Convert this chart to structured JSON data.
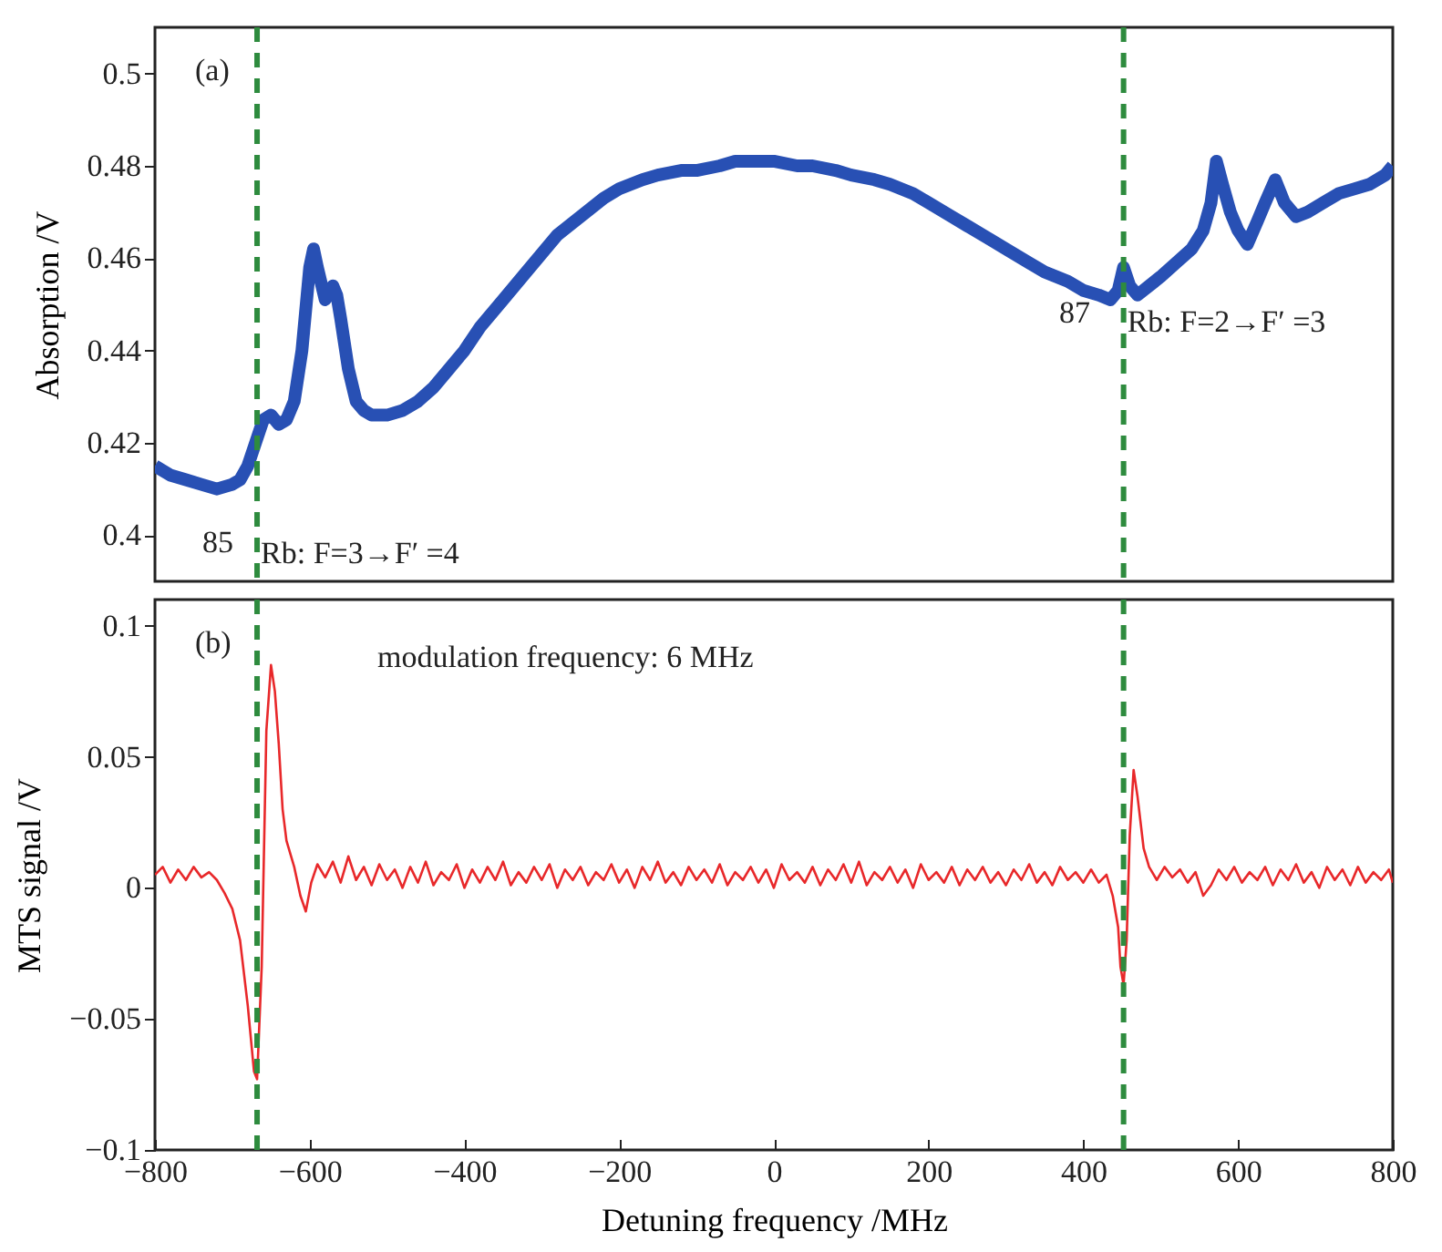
{
  "chart_data": [
    {
      "type": "line",
      "ylabel": "Absorption /V",
      "xlim": [
        -800,
        800
      ],
      "xticks": [
        -800,
        -600,
        -400,
        -200,
        0,
        200,
        400,
        600,
        800
      ],
      "ylim": [
        0.39,
        0.51
      ],
      "yticks": [
        0.4,
        0.42,
        0.44,
        0.46,
        0.48,
        0.5
      ],
      "tick_labels": "y",
      "grid": false,
      "annotations": [
        "(a)",
        "85",
        {
          "text": "Rb: F=3→F′ =4",
          "x": -668,
          "y": 0.396
        },
        "87",
        {
          "text": "Rb: F=2→F′ =3",
          "x": 452,
          "y": 0.446
        }
      ],
      "ref_lines": [
        {
          "axis": "x",
          "value": -668,
          "color": "#2e8b3e",
          "line_style": "dashed"
        },
        {
          "axis": "x",
          "value": 452,
          "color": "#2e8b3e",
          "line_style": "dashed"
        }
      ],
      "series": [
        {
          "color": "#2850b4",
          "x": [
            -800,
            -780,
            -760,
            -740,
            -720,
            -700,
            -690,
            -680,
            -670,
            -660,
            -650,
            -640,
            -630,
            -620,
            -610,
            -600,
            -595,
            -590,
            -580,
            -570,
            -565,
            -560,
            -550,
            -540,
            -530,
            -520,
            -500,
            -480,
            -460,
            -440,
            -420,
            -400,
            -380,
            -350,
            -320,
            -300,
            -280,
            -250,
            -220,
            -200,
            -170,
            -150,
            -120,
            -100,
            -70,
            -50,
            -20,
            0,
            30,
            50,
            80,
            100,
            130,
            150,
            180,
            200,
            230,
            250,
            280,
            300,
            330,
            350,
            380,
            400,
            420,
            435,
            445,
            452,
            460,
            470,
            485,
            500,
            520,
            540,
            555,
            565,
            572,
            580,
            590,
            600,
            612,
            625,
            635,
            648,
            660,
            675,
            690,
            710,
            730,
            750,
            770,
            790,
            800
          ],
          "values": [
            0.415,
            0.413,
            0.412,
            0.411,
            0.41,
            0.411,
            0.412,
            0.415,
            0.42,
            0.425,
            0.426,
            0.424,
            0.425,
            0.429,
            0.44,
            0.458,
            0.462,
            0.458,
            0.451,
            0.454,
            0.452,
            0.447,
            0.436,
            0.429,
            0.427,
            0.426,
            0.426,
            0.427,
            0.429,
            0.432,
            0.436,
            0.44,
            0.445,
            0.451,
            0.457,
            0.461,
            0.465,
            0.469,
            0.473,
            0.475,
            0.477,
            0.478,
            0.479,
            0.479,
            0.48,
            0.481,
            0.481,
            0.481,
            0.48,
            0.48,
            0.479,
            0.478,
            0.477,
            0.476,
            0.474,
            0.472,
            0.469,
            0.467,
            0.464,
            0.462,
            0.459,
            0.457,
            0.455,
            0.453,
            0.452,
            0.451,
            0.453,
            0.458,
            0.454,
            0.452,
            0.454,
            0.456,
            0.459,
            0.462,
            0.466,
            0.472,
            0.481,
            0.476,
            0.47,
            0.466,
            0.463,
            0.468,
            0.472,
            0.477,
            0.472,
            0.469,
            0.47,
            0.472,
            0.474,
            0.475,
            0.476,
            0.478,
            0.48
          ]
        }
      ]
    },
    {
      "type": "line",
      "xlabel": "Detuning frequency /MHz",
      "ylabel": "MTS signal /V",
      "xlim": [
        -800,
        800
      ],
      "xticks": [
        -800,
        -600,
        -400,
        -200,
        0,
        200,
        400,
        600,
        800
      ],
      "ylim": [
        -0.1,
        0.11
      ],
      "yticks": [
        -0.1,
        -0.05,
        0,
        0.05,
        0.1
      ],
      "grid": false,
      "annotations": [
        "(b)",
        "modulation frequency: 6 MHz"
      ],
      "ref_lines": [
        {
          "axis": "x",
          "value": -668,
          "color": "#2e8b3e",
          "line_style": "dashed"
        },
        {
          "axis": "x",
          "value": 452,
          "color": "#2e8b3e",
          "line_style": "dashed"
        }
      ],
      "series": [
        {
          "color": "#e8282a",
          "x": [
            -800,
            -790,
            -780,
            -770,
            -760,
            -750,
            -740,
            -730,
            -720,
            -710,
            -700,
            -690,
            -680,
            -672,
            -668,
            -662,
            -656,
            -650,
            -645,
            -640,
            -635,
            -630,
            -620,
            -612,
            -605,
            -598,
            -590,
            -580,
            -570,
            -560,
            -550,
            -540,
            -530,
            -520,
            -510,
            -500,
            -490,
            -480,
            -470,
            -460,
            -450,
            -440,
            -430,
            -420,
            -410,
            -400,
            -390,
            -380,
            -370,
            -360,
            -350,
            -340,
            -330,
            -320,
            -310,
            -300,
            -290,
            -280,
            -270,
            -260,
            -250,
            -240,
            -230,
            -220,
            -210,
            -200,
            -190,
            -180,
            -170,
            -160,
            -150,
            -140,
            -130,
            -120,
            -110,
            -100,
            -90,
            -80,
            -70,
            -60,
            -50,
            -40,
            -30,
            -20,
            -10,
            0,
            10,
            20,
            30,
            40,
            50,
            60,
            70,
            80,
            90,
            100,
            110,
            120,
            130,
            140,
            150,
            160,
            170,
            180,
            190,
            200,
            210,
            220,
            230,
            240,
            250,
            260,
            270,
            280,
            290,
            300,
            310,
            320,
            330,
            340,
            350,
            360,
            370,
            380,
            390,
            400,
            410,
            420,
            430,
            438,
            445,
            448,
            452,
            456,
            460,
            465,
            470,
            478,
            485,
            495,
            505,
            515,
            525,
            535,
            545,
            555,
            565,
            575,
            585,
            595,
            605,
            615,
            625,
            635,
            645,
            655,
            665,
            675,
            685,
            695,
            705,
            715,
            725,
            735,
            745,
            755,
            765,
            775,
            785,
            795,
            800
          ],
          "values": [
            0.005,
            0.008,
            0.002,
            0.007,
            0.003,
            0.008,
            0.004,
            0.006,
            0.003,
            -0.002,
            -0.008,
            -0.02,
            -0.045,
            -0.07,
            -0.073,
            -0.03,
            0.06,
            0.085,
            0.075,
            0.055,
            0.03,
            0.018,
            0.008,
            -0.003,
            -0.009,
            0.002,
            0.009,
            0.004,
            0.01,
            0.002,
            0.012,
            0.003,
            0.008,
            0.001,
            0.009,
            0.003,
            0.007,
            0.0,
            0.008,
            0.002,
            0.01,
            0.001,
            0.006,
            0.003,
            0.009,
            0.0,
            0.007,
            0.002,
            0.008,
            0.003,
            0.01,
            0.001,
            0.006,
            0.002,
            0.008,
            0.003,
            0.009,
            0.0,
            0.007,
            0.003,
            0.008,
            0.001,
            0.006,
            0.003,
            0.009,
            0.002,
            0.007,
            0.0,
            0.008,
            0.003,
            0.01,
            0.002,
            0.006,
            0.001,
            0.008,
            0.003,
            0.007,
            0.002,
            0.009,
            0.001,
            0.006,
            0.003,
            0.008,
            0.002,
            0.007,
            0.0,
            0.009,
            0.003,
            0.006,
            0.002,
            0.008,
            0.001,
            0.007,
            0.003,
            0.009,
            0.002,
            0.01,
            0.001,
            0.006,
            0.003,
            0.008,
            0.002,
            0.007,
            0.0,
            0.009,
            0.003,
            0.006,
            0.002,
            0.008,
            0.001,
            0.007,
            0.003,
            0.008,
            0.002,
            0.006,
            0.001,
            0.007,
            0.003,
            0.009,
            0.002,
            0.006,
            0.001,
            0.008,
            0.003,
            0.006,
            0.002,
            0.007,
            0.002,
            0.005,
            -0.003,
            -0.015,
            -0.03,
            -0.037,
            -0.02,
            0.02,
            0.045,
            0.035,
            0.015,
            0.008,
            0.003,
            0.008,
            0.004,
            0.007,
            0.002,
            0.006,
            -0.003,
            0.001,
            0.007,
            0.003,
            0.008,
            0.002,
            0.006,
            0.003,
            0.008,
            0.001,
            0.007,
            0.003,
            0.009,
            0.002,
            0.006,
            0.0,
            0.008,
            0.003,
            0.007,
            0.001,
            0.008,
            0.002,
            0.006,
            0.003,
            0.007,
            0.002
          ]
        }
      ]
    }
  ]
}
